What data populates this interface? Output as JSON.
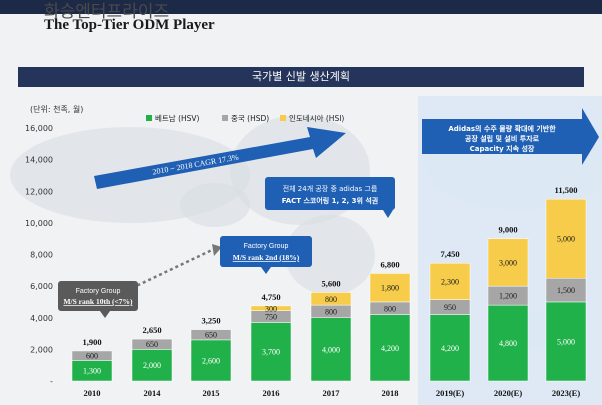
{
  "header": {
    "title_kr": "화승엔터프라이즈",
    "title_en": "The Top-Tier ODM Player"
  },
  "banner": "국가별 신발 생산계획",
  "chart_data": {
    "type": "bar",
    "stacked": true,
    "unit_label": "(단위: 천족, 월)",
    "categories": [
      "2010",
      "2014",
      "2015",
      "2016",
      "2017",
      "2018",
      "2019(E)",
      "2020(E)",
      "2023(E)"
    ],
    "series": [
      {
        "name": "베트남 (HSV)",
        "color": "#21b14a",
        "values": [
          1300,
          2000,
          2600,
          3700,
          4000,
          4200,
          4200,
          4800,
          5000
        ],
        "labels": [
          "1,300",
          "2,000",
          "2,600",
          "3,700",
          "4,000",
          "4,200",
          "4,200",
          "4,800",
          "5,000"
        ]
      },
      {
        "name": "중국 (HSD)",
        "color": "#a6a6a6",
        "values": [
          600,
          650,
          650,
          750,
          800,
          800,
          950,
          1200,
          1500
        ],
        "labels": [
          "600",
          "650",
          "650",
          "750",
          "800",
          "800",
          "950",
          "1,200",
          "1,500"
        ]
      },
      {
        "name": "인도네시아 (HSI)",
        "color": "#f6cc4a",
        "values": [
          0,
          0,
          0,
          300,
          800,
          1800,
          2300,
          3000,
          5000
        ],
        "labels": [
          "",
          "",
          "",
          "300",
          "800",
          "1,800",
          "2,300",
          "3,000",
          "5,000"
        ]
      }
    ],
    "totals": [
      "1,900",
      "2,650",
      "3,250",
      "4,750",
      "5,600",
      "6,800",
      "7,450",
      "9,000",
      "11,500"
    ],
    "ylim": [
      0,
      16000
    ],
    "yticks": [
      "-",
      "2,000",
      "4,000",
      "6,000",
      "8,000",
      "10,000",
      "12,000",
      "14,000",
      "16,000"
    ],
    "annotations": {
      "cagr": "2010 ~ 2018 CAGR 17.3%",
      "box_2010_line1": "Factory Group",
      "box_2010_line2": "M/S rank 10th (<7%)",
      "box_2016_line1": "Factory Group",
      "box_2016_line2": "M/S rank 2nd (18%)",
      "box_2018_line1": "전체 24개 공장 중 adidas 그룹",
      "box_2018_line2": "FACT 스코어링 1, 2, 3위 석권",
      "box_right_line1": "Adidas의 수주 물량 확대에 기반한",
      "box_right_line2": "공장 설립 및 설비 투자로",
      "box_right_line3": "Capacity 지속 성장"
    },
    "colors": {
      "accent": "#1f5fb4",
      "dark_box": "#5a5a5a",
      "highlight": "#dce8f5"
    }
  }
}
